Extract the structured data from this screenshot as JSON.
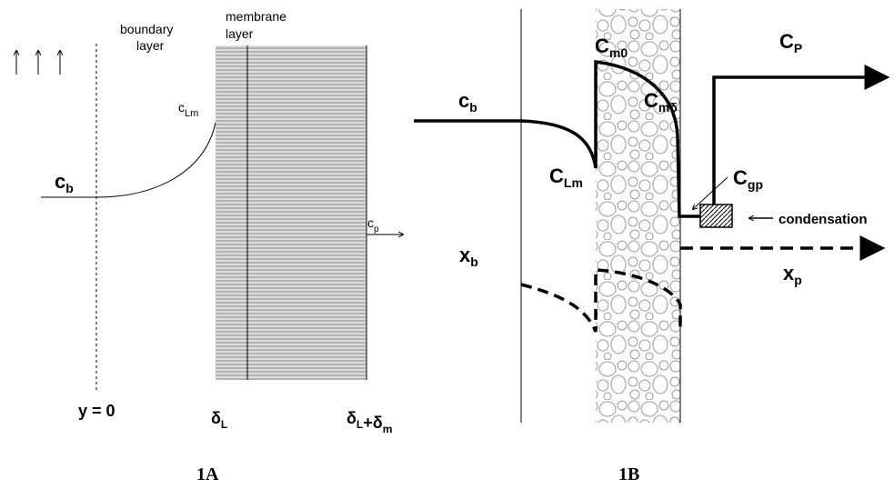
{
  "panel_a": {
    "caption": "1A",
    "boundary_layer": [
      "boundary",
      "layer"
    ],
    "membrane_layer": [
      "membrane",
      "layer"
    ],
    "c_lm": {
      "text": "c",
      "sub": "Lm"
    },
    "c_b": {
      "text": "c",
      "sub": "b"
    },
    "c_p": {
      "text": "c",
      "sub": "p"
    },
    "y0": "y = 0",
    "delta_l": {
      "text": "δ",
      "sub": "L"
    },
    "delta_sum": [
      {
        "text": "δ",
        "sub": "L"
      },
      {
        "text": "+δ",
        "sub": "m"
      }
    ]
  },
  "panel_b": {
    "caption": "1B",
    "c_p": {
      "text": "C",
      "sub": "P"
    },
    "c_b": {
      "text": "c",
      "sub": "b"
    },
    "c_m0": {
      "text": "C",
      "sub": "m0"
    },
    "c_md": {
      "text": "C",
      "sub": "mδ"
    },
    "c_lm": {
      "text": "C",
      "sub": "Lm"
    },
    "c_gp": {
      "text": "C",
      "sub": "gp"
    },
    "condensation": "condensation",
    "x_b": {
      "text": "x",
      "sub": "b"
    },
    "x_p": {
      "text": "x",
      "sub": "p"
    }
  }
}
